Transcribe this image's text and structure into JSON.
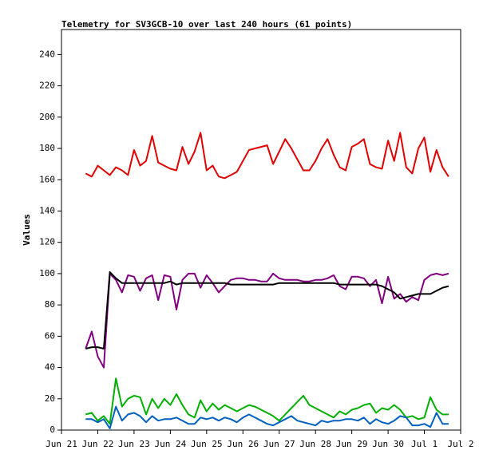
{
  "chart_data": {
    "type": "line",
    "title": "Telemetry for SV3GCB-10 over last 240 hours (61 points)",
    "y_label": "Values",
    "x": [
      0.667,
      0.833,
      1,
      1.167,
      1.333,
      1.5,
      1.667,
      1.833,
      2,
      2.167,
      2.333,
      2.5,
      2.667,
      2.833,
      3,
      3.167,
      3.333,
      3.5,
      3.667,
      3.833,
      4,
      4.167,
      4.333,
      4.5,
      4.667,
      4.833,
      5,
      5.167,
      5.333,
      5.5,
      5.667,
      5.833,
      6,
      6.167,
      6.333,
      6.5,
      6.667,
      6.833,
      7,
      7.167,
      7.333,
      7.5,
      7.667,
      7.833,
      8,
      8.167,
      8.333,
      8.5,
      8.667,
      8.833,
      9,
      9.167,
      9.333,
      9.5,
      9.667,
      9.833,
      10,
      10.167,
      10.333,
      10.5,
      10.667
    ],
    "series": [
      {
        "color": "#e00000",
        "values": [
          164,
          162,
          169,
          166,
          163,
          168,
          166,
          163,
          179,
          169,
          172,
          188,
          171,
          169,
          167,
          166,
          181,
          170,
          178,
          190,
          166,
          169,
          162,
          161,
          163,
          165,
          172,
          179,
          180,
          181,
          182,
          170,
          178,
          186,
          180,
          173,
          166,
          166,
          172,
          180,
          186,
          176,
          168,
          166,
          181,
          183,
          186,
          170,
          168,
          167,
          185,
          172,
          190,
          168,
          164,
          180,
          187,
          165,
          179,
          168,
          162
        ]
      },
      {
        "color": "#800080",
        "values": [
          52,
          63,
          47,
          40,
          100,
          96,
          88,
          99,
          98,
          89,
          97,
          99,
          83,
          99,
          98,
          77,
          96,
          100,
          100,
          91,
          99,
          94,
          88,
          92,
          96,
          97,
          97,
          96,
          96,
          95,
          95,
          100,
          97,
          96,
          96,
          96,
          95,
          95,
          96,
          96,
          97,
          99,
          92,
          90,
          98,
          98,
          97,
          92,
          96,
          81,
          98,
          84,
          87,
          82,
          85,
          83,
          96,
          99,
          100,
          99,
          100
        ]
      },
      {
        "color": "#000000",
        "values": [
          52,
          53,
          53,
          52,
          101,
          97,
          94,
          94,
          94,
          94,
          94,
          94,
          94,
          94,
          95,
          93,
          94,
          94,
          94,
          94,
          94,
          94,
          94,
          94,
          93,
          93,
          93,
          93,
          93,
          93,
          93,
          93,
          94,
          94,
          94,
          94,
          94,
          94,
          94,
          94,
          94,
          94,
          93,
          93,
          93,
          93,
          93,
          93,
          93,
          92,
          90,
          88,
          84,
          85,
          86,
          87,
          87,
          87,
          89,
          91,
          92
        ]
      },
      {
        "color": "#00b000",
        "values": [
          10,
          11,
          6,
          9,
          4,
          33,
          15,
          20,
          22,
          21,
          10,
          20,
          14,
          20,
          16,
          23,
          16,
          10,
          8,
          19,
          12,
          17,
          13,
          16,
          14,
          12,
          14,
          16,
          15,
          13,
          11,
          9,
          6,
          10,
          14,
          18,
          22,
          16,
          14,
          12,
          10,
          8,
          12,
          10,
          13,
          14,
          16,
          17,
          11,
          14,
          13,
          16,
          13,
          8,
          9,
          7,
          8,
          21,
          13,
          10,
          10
        ]
      },
      {
        "color": "#0060c0",
        "values": [
          7,
          7,
          5,
          7,
          1,
          15,
          6,
          10,
          11,
          9,
          5,
          9,
          6,
          7,
          7,
          8,
          6,
          4,
          4,
          8,
          7,
          8,
          6,
          8,
          7,
          5,
          8,
          10,
          8,
          6,
          4,
          3,
          5,
          7,
          9,
          6,
          5,
          4,
          3,
          6,
          5,
          6,
          6,
          7,
          7,
          6,
          8,
          4,
          7,
          5,
          4,
          6,
          9,
          8,
          3,
          3,
          4,
          2,
          11,
          4,
          4
        ]
      }
    ],
    "xlim": [
      0,
      11
    ],
    "xticks": [
      {
        "value": 0,
        "label": "Jun 21"
      },
      {
        "value": 1,
        "label": "Jun 22"
      },
      {
        "value": 2,
        "label": "Jun 23"
      },
      {
        "value": 3,
        "label": "Jun 24"
      },
      {
        "value": 4,
        "label": "Jun 25"
      },
      {
        "value": 5,
        "label": "Jun 26"
      },
      {
        "value": 6,
        "label": "Jun 27"
      },
      {
        "value": 7,
        "label": "Jun 28"
      },
      {
        "value": 8,
        "label": "Jun 29"
      },
      {
        "value": 9,
        "label": "Jun 30"
      },
      {
        "value": 10,
        "label": "Jul 1"
      },
      {
        "value": 11,
        "label": "Jul 2"
      }
    ],
    "ylim": [
      0,
      256
    ],
    "yticks": [
      0,
      20,
      40,
      60,
      80,
      100,
      120,
      140,
      160,
      180,
      200,
      220,
      240
    ],
    "grid": false
  }
}
